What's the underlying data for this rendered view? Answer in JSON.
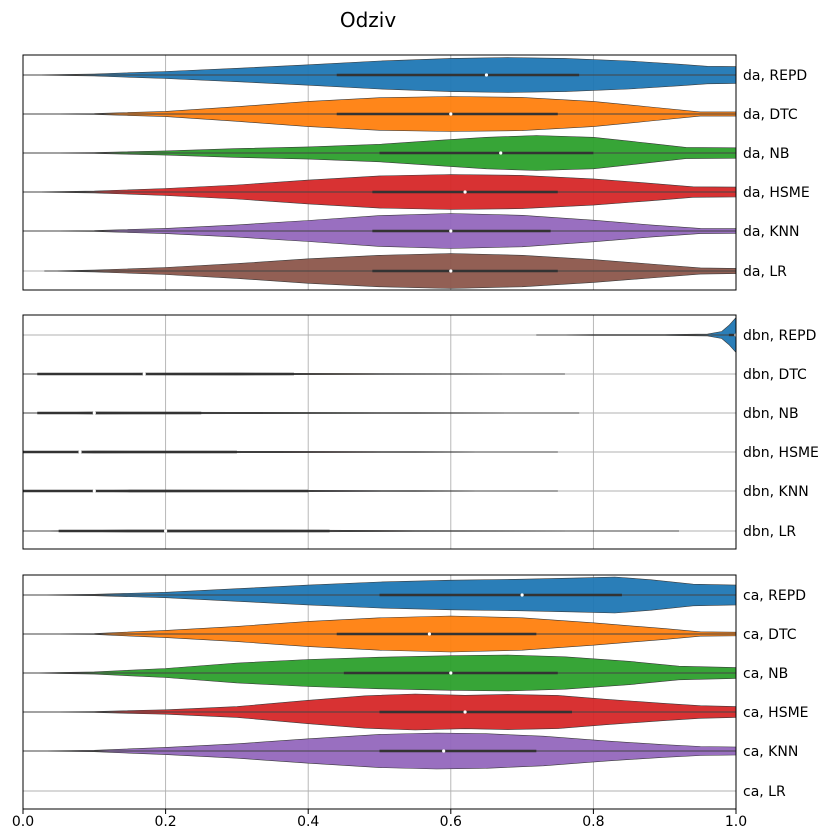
{
  "chart_data": {
    "type": "violin",
    "title": "Odziv",
    "xlim": [
      0.0,
      1.0
    ],
    "xticks": [
      "0.0",
      "0.2",
      "0.4",
      "0.6",
      "0.8",
      "1.0"
    ],
    "grid": true,
    "panels": [
      {
        "group": "da",
        "rows": [
          {
            "label": "da, REPD",
            "color": "#1f77b4",
            "xmin": 0.0,
            "q1": 0.44,
            "median": 0.65,
            "q3": 0.78,
            "xmax": 1.0,
            "density": [
              [
                0.0,
                0.0
              ],
              [
                0.1,
                0.06
              ],
              [
                0.2,
                0.2
              ],
              [
                0.3,
                0.38
              ],
              [
                0.4,
                0.58
              ],
              [
                0.5,
                0.8
              ],
              [
                0.6,
                0.95
              ],
              [
                0.68,
                1.0
              ],
              [
                0.76,
                0.95
              ],
              [
                0.85,
                0.8
              ],
              [
                0.92,
                0.62
              ],
              [
                0.96,
                0.5
              ],
              [
                1.0,
                0.48
              ]
            ]
          },
          {
            "label": "da, DTC",
            "color": "#ff7f0e",
            "xmin": 0.0,
            "q1": 0.44,
            "median": 0.6,
            "q3": 0.75,
            "xmax": 1.0,
            "density": [
              [
                0.0,
                0.0
              ],
              [
                0.1,
                0.03
              ],
              [
                0.2,
                0.15
              ],
              [
                0.3,
                0.42
              ],
              [
                0.4,
                0.72
              ],
              [
                0.5,
                0.93
              ],
              [
                0.6,
                1.0
              ],
              [
                0.7,
                0.95
              ],
              [
                0.8,
                0.72
              ],
              [
                0.88,
                0.4
              ],
              [
                0.95,
                0.12
              ],
              [
                1.0,
                0.12
              ]
            ]
          },
          {
            "label": "da, NB",
            "color": "#2ca02c",
            "xmin": 0.0,
            "q1": 0.5,
            "median": 0.67,
            "q3": 0.8,
            "xmax": 1.0,
            "density": [
              [
                0.0,
                0.0
              ],
              [
                0.1,
                0.03
              ],
              [
                0.2,
                0.12
              ],
              [
                0.3,
                0.25
              ],
              [
                0.4,
                0.35
              ],
              [
                0.5,
                0.5
              ],
              [
                0.58,
                0.72
              ],
              [
                0.65,
                0.9
              ],
              [
                0.72,
                1.0
              ],
              [
                0.8,
                0.9
              ],
              [
                0.88,
                0.55
              ],
              [
                0.93,
                0.32
              ],
              [
                1.0,
                0.3
              ]
            ]
          },
          {
            "label": "da, HSME",
            "color": "#d62728",
            "xmin": 0.0,
            "q1": 0.49,
            "median": 0.62,
            "q3": 0.75,
            "xmax": 1.0,
            "density": [
              [
                0.0,
                0.0
              ],
              [
                0.1,
                0.05
              ],
              [
                0.2,
                0.2
              ],
              [
                0.3,
                0.4
              ],
              [
                0.4,
                0.68
              ],
              [
                0.5,
                0.92
              ],
              [
                0.6,
                1.0
              ],
              [
                0.7,
                0.95
              ],
              [
                0.8,
                0.75
              ],
              [
                0.88,
                0.5
              ],
              [
                0.94,
                0.3
              ],
              [
                1.0,
                0.28
              ]
            ]
          },
          {
            "label": "da, KNN",
            "color": "#9467bd",
            "xmin": 0.0,
            "q1": 0.49,
            "median": 0.6,
            "q3": 0.74,
            "xmax": 1.0,
            "density": [
              [
                0.0,
                0.0
              ],
              [
                0.1,
                0.03
              ],
              [
                0.2,
                0.15
              ],
              [
                0.3,
                0.35
              ],
              [
                0.4,
                0.6
              ],
              [
                0.5,
                0.88
              ],
              [
                0.6,
                1.0
              ],
              [
                0.7,
                0.9
              ],
              [
                0.8,
                0.62
              ],
              [
                0.88,
                0.35
              ],
              [
                0.95,
                0.15
              ],
              [
                1.0,
                0.14
              ]
            ]
          },
          {
            "label": "da, LR",
            "color": "#8c564b",
            "xmin": 0.03,
            "q1": 0.49,
            "median": 0.6,
            "q3": 0.75,
            "xmax": 1.0,
            "density": [
              [
                0.03,
                0.0
              ],
              [
                0.1,
                0.05
              ],
              [
                0.2,
                0.2
              ],
              [
                0.3,
                0.42
              ],
              [
                0.4,
                0.7
              ],
              [
                0.5,
                0.9
              ],
              [
                0.6,
                1.0
              ],
              [
                0.7,
                0.9
              ],
              [
                0.8,
                0.65
              ],
              [
                0.88,
                0.4
              ],
              [
                0.95,
                0.18
              ],
              [
                1.0,
                0.15
              ]
            ]
          }
        ]
      },
      {
        "group": "dbn",
        "rows": [
          {
            "label": "dbn, REPD",
            "color": "#1f77b4",
            "xmin": 0.72,
            "q1": 0.99,
            "median": 1.0,
            "q3": 1.0,
            "xmax": 1.0,
            "density": [
              [
                0.72,
                0.0
              ],
              [
                0.8,
                0.02
              ],
              [
                0.9,
                0.03
              ],
              [
                0.96,
                0.05
              ],
              [
                0.98,
                0.2
              ],
              [
                0.99,
                0.55
              ],
              [
                1.0,
                1.0
              ]
            ]
          },
          {
            "label": "dbn, DTC",
            "color": "#ff7f0e",
            "xmin": 0.0,
            "q1": 0.02,
            "median": 0.17,
            "q3": 0.38,
            "xmax": 0.76,
            "density": [
              [
                0.0,
                0.0
              ],
              [
                0.1,
                0.04
              ],
              [
                0.3,
                0.05
              ],
              [
                0.5,
                0.03
              ],
              [
                0.76,
                0.0
              ]
            ]
          },
          {
            "label": "dbn, NB",
            "color": "#2ca02c",
            "xmin": 0.0,
            "q1": 0.02,
            "median": 0.1,
            "q3": 0.25,
            "xmax": 0.78,
            "density": [
              [
                0.0,
                0.0
              ],
              [
                0.1,
                0.05
              ],
              [
                0.3,
                0.04
              ],
              [
                0.55,
                0.02
              ],
              [
                0.78,
                0.0
              ]
            ]
          },
          {
            "label": "dbn, HSME",
            "color": "#d62728",
            "xmin": 0.0,
            "q1": 0.0,
            "median": 0.08,
            "q3": 0.3,
            "xmax": 0.75,
            "density": [
              [
                0.0,
                0.0
              ],
              [
                0.1,
                0.05
              ],
              [
                0.35,
                0.04
              ],
              [
                0.55,
                0.02
              ],
              [
                0.75,
                0.0
              ]
            ]
          },
          {
            "label": "dbn, KNN",
            "color": "#9467bd",
            "xmin": 0.0,
            "q1": 0.0,
            "median": 0.1,
            "q3": 0.4,
            "xmax": 0.75,
            "density": [
              [
                0.0,
                0.0
              ],
              [
                0.15,
                0.05
              ],
              [
                0.4,
                0.04
              ],
              [
                0.55,
                0.02
              ],
              [
                0.75,
                0.0
              ]
            ]
          },
          {
            "label": "dbn, LR",
            "color": "#8c564b",
            "xmin": 0.0,
            "q1": 0.05,
            "median": 0.2,
            "q3": 0.43,
            "xmax": 0.92,
            "density": [
              [
                0.0,
                0.0
              ],
              [
                0.15,
                0.06
              ],
              [
                0.35,
                0.06
              ],
              [
                0.55,
                0.03
              ],
              [
                0.92,
                0.0
              ]
            ]
          }
        ]
      },
      {
        "group": "ca",
        "rows": [
          {
            "label": "ca, REPD",
            "color": "#1f77b4",
            "xmin": 0.0,
            "q1": 0.5,
            "median": 0.7,
            "q3": 0.84,
            "xmax": 1.0,
            "density": [
              [
                0.0,
                0.0
              ],
              [
                0.1,
                0.04
              ],
              [
                0.2,
                0.15
              ],
              [
                0.3,
                0.35
              ],
              [
                0.4,
                0.55
              ],
              [
                0.5,
                0.72
              ],
              [
                0.6,
                0.82
              ],
              [
                0.7,
                0.88
              ],
              [
                0.78,
                0.95
              ],
              [
                0.83,
                1.0
              ],
              [
                0.88,
                0.85
              ],
              [
                0.94,
                0.6
              ],
              [
                1.0,
                0.55
              ]
            ]
          },
          {
            "label": "ca, DTC",
            "color": "#ff7f0e",
            "xmin": 0.0,
            "q1": 0.44,
            "median": 0.57,
            "q3": 0.72,
            "xmax": 1.0,
            "density": [
              [
                0.0,
                0.0
              ],
              [
                0.1,
                0.03
              ],
              [
                0.2,
                0.2
              ],
              [
                0.3,
                0.42
              ],
              [
                0.4,
                0.7
              ],
              [
                0.5,
                0.9
              ],
              [
                0.6,
                1.0
              ],
              [
                0.7,
                0.9
              ],
              [
                0.8,
                0.62
              ],
              [
                0.9,
                0.3
              ],
              [
                0.95,
                0.12
              ],
              [
                1.0,
                0.1
              ]
            ]
          },
          {
            "label": "ca, NB",
            "color": "#2ca02c",
            "xmin": 0.0,
            "q1": 0.45,
            "median": 0.6,
            "q3": 0.75,
            "xmax": 1.0,
            "density": [
              [
                0.0,
                0.0
              ],
              [
                0.1,
                0.06
              ],
              [
                0.2,
                0.25
              ],
              [
                0.3,
                0.55
              ],
              [
                0.4,
                0.75
              ],
              [
                0.5,
                0.88
              ],
              [
                0.6,
                0.96
              ],
              [
                0.68,
                1.0
              ],
              [
                0.76,
                0.9
              ],
              [
                0.85,
                0.65
              ],
              [
                0.92,
                0.38
              ],
              [
                1.0,
                0.3
              ]
            ]
          },
          {
            "label": "ca, HSME",
            "color": "#d62728",
            "xmin": 0.0,
            "q1": 0.5,
            "median": 0.62,
            "q3": 0.77,
            "xmax": 1.0,
            "density": [
              [
                0.0,
                0.0
              ],
              [
                0.1,
                0.03
              ],
              [
                0.2,
                0.12
              ],
              [
                0.3,
                0.3
              ],
              [
                0.4,
                0.65
              ],
              [
                0.48,
                0.9
              ],
              [
                0.55,
                1.0
              ],
              [
                0.62,
                0.93
              ],
              [
                0.68,
                0.98
              ],
              [
                0.75,
                0.92
              ],
              [
                0.82,
                0.7
              ],
              [
                0.9,
                0.48
              ],
              [
                0.95,
                0.35
              ],
              [
                1.0,
                0.3
              ]
            ]
          },
          {
            "label": "ca, KNN",
            "color": "#9467bd",
            "xmin": 0.0,
            "q1": 0.5,
            "median": 0.59,
            "q3": 0.72,
            "xmax": 1.0,
            "density": [
              [
                0.0,
                0.0
              ],
              [
                0.1,
                0.04
              ],
              [
                0.2,
                0.2
              ],
              [
                0.3,
                0.4
              ],
              [
                0.4,
                0.68
              ],
              [
                0.5,
                0.92
              ],
              [
                0.58,
                1.0
              ],
              [
                0.65,
                0.96
              ],
              [
                0.73,
                0.82
              ],
              [
                0.82,
                0.55
              ],
              [
                0.9,
                0.35
              ],
              [
                0.95,
                0.25
              ],
              [
                1.0,
                0.22
              ]
            ]
          },
          {
            "label": "ca, LR",
            "color": "#8c564b",
            "xmin": null,
            "q1": null,
            "median": null,
            "q3": null,
            "xmax": null,
            "density": []
          }
        ]
      }
    ]
  }
}
